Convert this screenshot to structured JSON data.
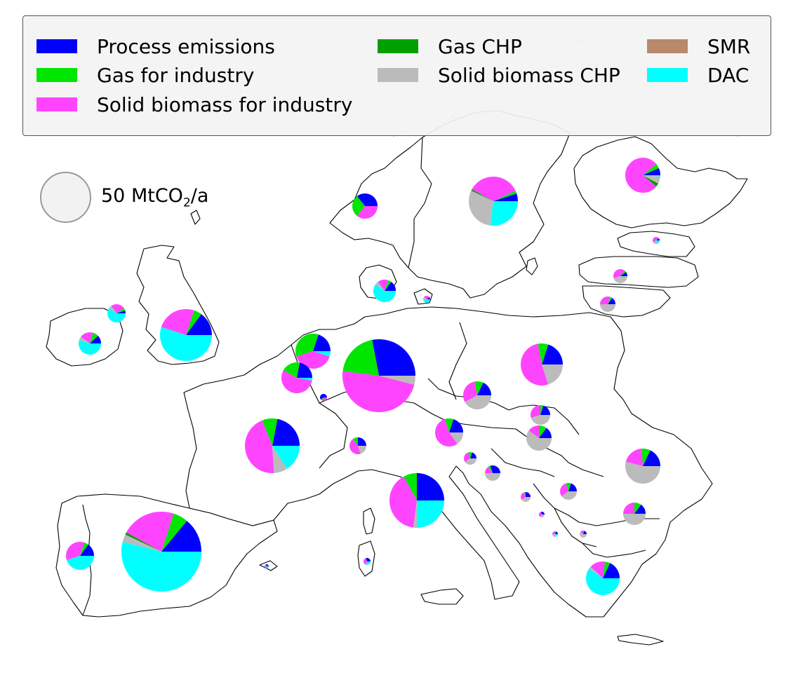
{
  "legend": {
    "items": [
      {
        "label": "Process emissions",
        "color": "#0000ff"
      },
      {
        "label": "Gas for industry",
        "color": "#00e600"
      },
      {
        "label": "Solid biomass for industry",
        "color": "#ff44ff"
      },
      {
        "label": "Gas CHP",
        "color": "#00a000"
      },
      {
        "label": "Solid biomass CHP",
        "color": "#bbbbbb"
      },
      {
        "label": "SMR",
        "color": "#b8896b"
      },
      {
        "label": "DAC",
        "color": "#00ffff"
      }
    ]
  },
  "scale": {
    "value": "50 MtCO",
    "subscript": "2",
    "unit": "/a"
  },
  "map_data": {
    "type": "pie-map",
    "colors": {
      "Process emissions": "#0000ff",
      "Gas for industry": "#00e600",
      "Solid biomass for industry": "#ff44ff",
      "Gas CHP": "#00a000",
      "Solid biomass CHP": "#bbbbbb",
      "SMR": "#b8896b",
      "DAC": "#00ffff"
    }
  }
}
